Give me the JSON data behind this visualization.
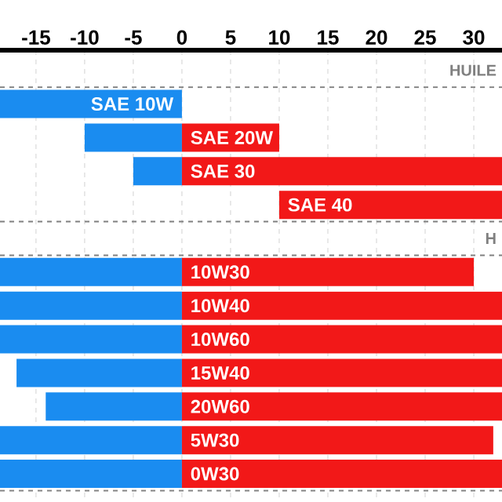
{
  "chart_data": {
    "type": "bar",
    "orientation": "horizontal",
    "categories": [
      null,
      "SAE 10W",
      "SAE 20W",
      "SAE 30",
      "SAE 40",
      null,
      "10W30",
      "10W40",
      "10W60",
      "15W40",
      "20W60",
      "5W30",
      "0W30"
    ],
    "series": [
      {
        "color": "#1a8cf0",
        "base": [
          null,
          -18.7,
          -10,
          -5,
          null,
          null,
          -18.7,
          -18.7,
          -18.7,
          -17,
          -14,
          -18.7,
          -18.7
        ],
        "values": [
          null,
          18.7,
          10,
          5,
          null,
          null,
          18.7,
          18.7,
          18.7,
          17,
          14,
          18.7,
          18.7
        ]
      },
      {
        "color": "#f21818",
        "base": [
          null,
          null,
          0,
          0,
          10,
          null,
          0,
          0,
          0,
          0,
          0,
          0,
          0
        ],
        "values": [
          null,
          null,
          10,
          32.9,
          22.9,
          null,
          30,
          32.9,
          32.9,
          32.9,
          32.9,
          32,
          32.9
        ]
      }
    ],
    "xlim": [
      -18.7,
      32.9
    ],
    "xticks": [
      -15,
      -10,
      -5,
      0,
      5,
      10,
      15,
      20,
      25,
      30
    ],
    "grid": "x",
    "tick_labels": "x",
    "annotations": [
      "HUILE",
      "H"
    ]
  }
}
